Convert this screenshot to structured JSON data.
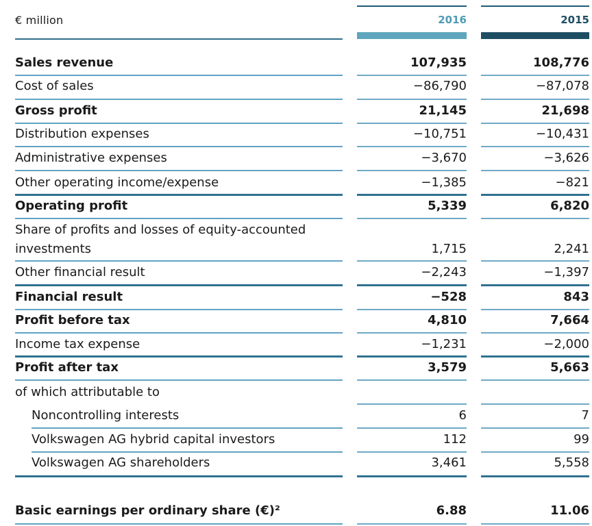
{
  "header": {
    "unit_label": "€ million",
    "years": [
      "2016",
      "2015"
    ],
    "colors": {
      "col2016_bar": "#5ea6bd",
      "col2015_bar": "#1f4e63",
      "year2016_text": "#4f9bb5",
      "year2015_text": "#1f4e63"
    }
  },
  "rows": [
    {
      "label": "Sales revenue",
      "v2016": "107,935",
      "v2015": "108,776",
      "bold": true
    },
    {
      "label": "Cost of sales",
      "v2016": "−86,790",
      "v2015": "−87,078",
      "bold": false
    },
    {
      "label": "Gross profit",
      "v2016": "21,145",
      "v2015": "21,698",
      "bold": true
    },
    {
      "label": "Distribution expenses",
      "v2016": "−10,751",
      "v2015": "−10,431",
      "bold": false
    },
    {
      "label": "Administrative expenses",
      "v2016": "−3,670",
      "v2015": "−3,626",
      "bold": false
    },
    {
      "label": "Other operating income/expense",
      "v2016": "−1,385",
      "v2015": "−821",
      "bold": false
    },
    {
      "label": "Operating profit",
      "v2016": "5,339",
      "v2015": "6,820",
      "bold": true
    },
    {
      "label": "Share of profits and losses of equity-accounted",
      "label2": "investments",
      "v2016": "1,715",
      "v2015": "2,241",
      "bold": false
    },
    {
      "label": "Other financial result",
      "v2016": "−2,243",
      "v2015": "−1,397",
      "bold": false
    },
    {
      "label": "Financial result",
      "v2016": "−528",
      "v2015": "843",
      "bold": true
    },
    {
      "label": "Profit before tax",
      "v2016": "4,810",
      "v2015": "7,664",
      "bold": true
    },
    {
      "label": "Income tax expense",
      "v2016": "−1,231",
      "v2015": "−2,000",
      "bold": false
    },
    {
      "label": "Profit after tax",
      "v2016": "3,579",
      "v2015": "5,663",
      "bold": true
    },
    {
      "label": "of which attributable to",
      "v2016": "",
      "v2015": "",
      "bold": false
    },
    {
      "label": "Noncontrolling interests",
      "v2016": "6",
      "v2015": "7",
      "bold": false,
      "indent": true
    },
    {
      "label": "Volkswagen AG hybrid capital investors",
      "v2016": "112",
      "v2015": "99",
      "bold": false,
      "indent": true
    },
    {
      "label": "Volkswagen AG shareholders",
      "v2016": "3,461",
      "v2015": "5,558",
      "bold": false,
      "indent": true
    },
    {
      "label": "Basic earnings per ordinary share (€)²",
      "v2016": "6.88",
      "v2015": "11.06",
      "bold": true
    }
  ]
}
